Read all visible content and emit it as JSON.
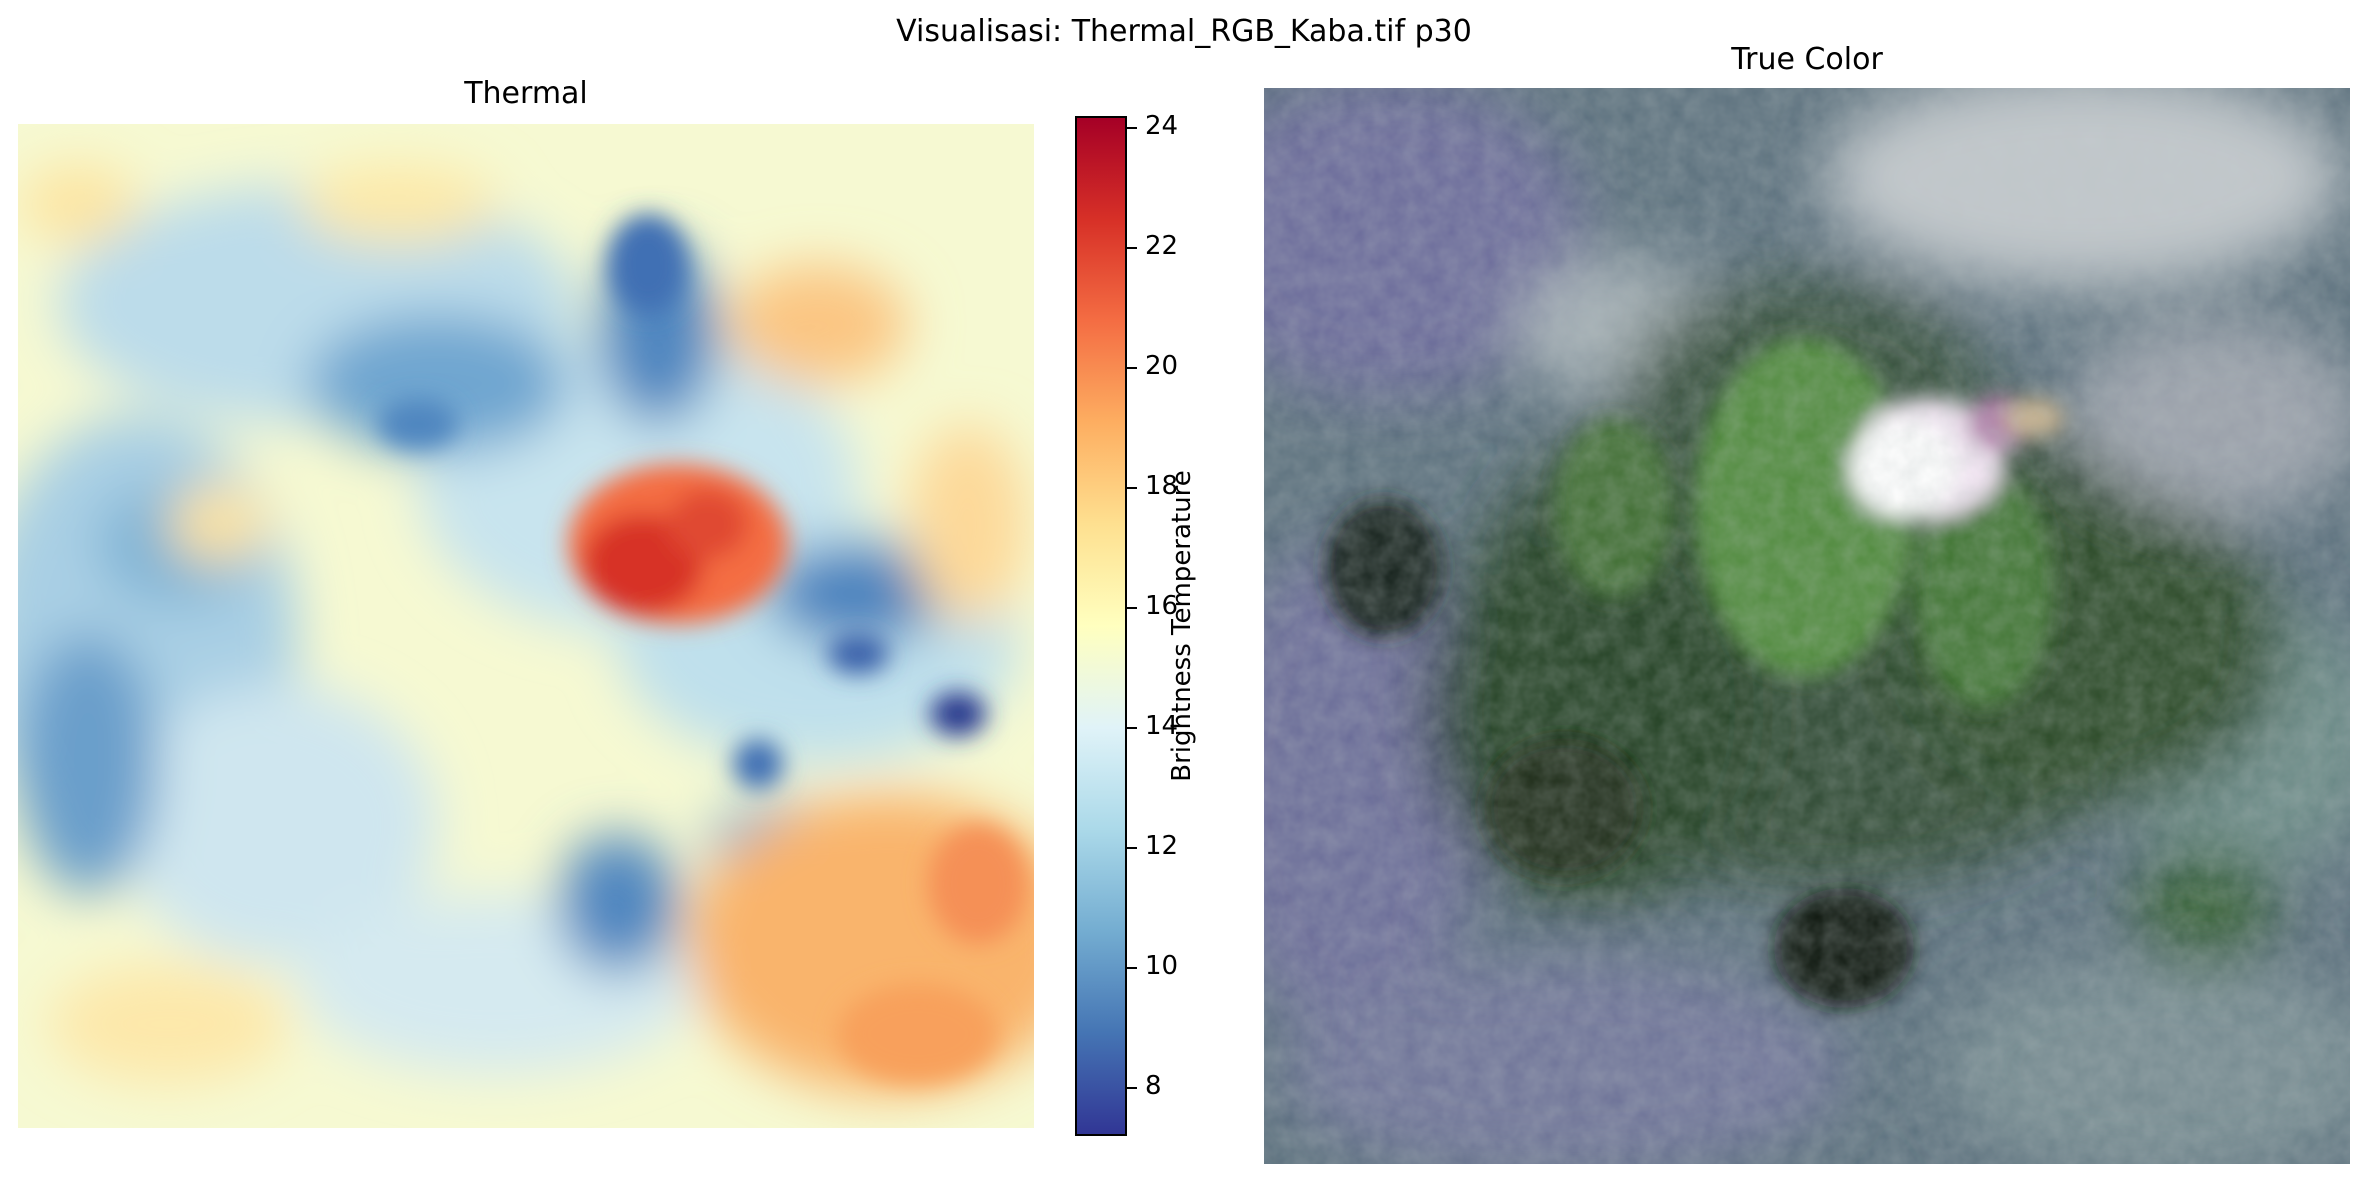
{
  "figure": {
    "suptitle": "Visualisasi: Thermal_RGB_Kaba.tif p30"
  },
  "panels": {
    "thermal": {
      "title": "Thermal",
      "colormap": [
        "#313695",
        "#4575b4",
        "#74add1",
        "#abd9e9",
        "#e0f3f8",
        "#ffffbf",
        "#fee090",
        "#fdae61",
        "#f46d43",
        "#d73027",
        "#a50026"
      ]
    },
    "true_color": {
      "title": "True Color"
    }
  },
  "colorbar": {
    "label": "Brightness Temperature",
    "min": 7.2,
    "max": 24.2,
    "ticks": [
      "8",
      "10",
      "12",
      "14",
      "16",
      "18",
      "20",
      "22",
      "24"
    ]
  }
}
